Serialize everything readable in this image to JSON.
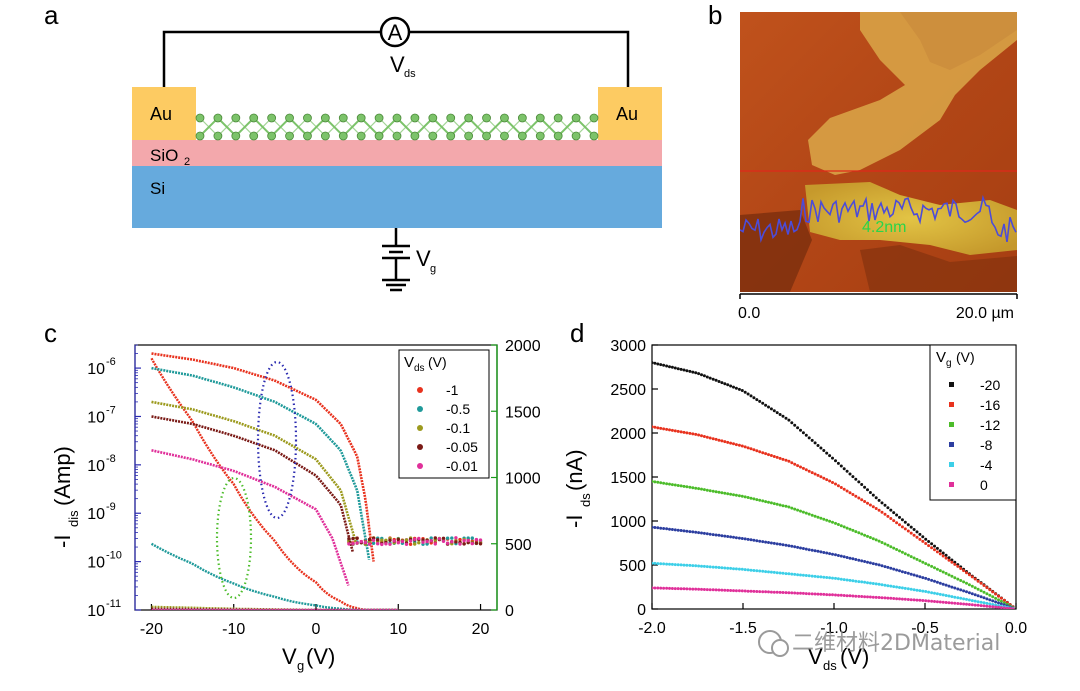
{
  "panels": {
    "a": {
      "letter": "a",
      "electrode_left": "Au",
      "electrode_right": "Au",
      "oxide": "SiO",
      "oxide_sub": "2",
      "substrate": "Si",
      "ammeter": "A",
      "vds_main": "V",
      "vds_sub": "ds",
      "vg_main": "V",
      "vg_sub": "g",
      "colors": {
        "au": "#fdcb62",
        "sio2": "#f3a8ac",
        "si": "#66aadd",
        "atoms": "#7cc36a"
      }
    },
    "b": {
      "letter": "b",
      "height_label": "4.2nm",
      "scale_start": "0.0",
      "scale_end": "20.0 µm"
    },
    "c": {
      "letter": "c",
      "ylabel_main": "-I",
      "ylabel_sub": "dis",
      "ylabel_unit": "(Amp)",
      "xlabel_main": "V",
      "xlabel_sub": "g",
      "xlabel_unit": "(V)",
      "left_ticks": [
        {
          "base": "10",
          "exp": "-6"
        },
        {
          "base": "10",
          "exp": "-7"
        },
        {
          "base": "10",
          "exp": "-8"
        },
        {
          "base": "10",
          "exp": "-9"
        },
        {
          "base": "10",
          "exp": "-10"
        },
        {
          "base": "10",
          "exp": "-11"
        }
      ],
      "legend_title_main": "V",
      "legend_title_sub": "ds",
      "legend_title_unit": "(V)"
    },
    "d": {
      "letter": "d",
      "ylabel_main": "-I",
      "ylabel_sub": "ds",
      "ylabel_unit": "(nA)",
      "xlabel_main": "V",
      "xlabel_sub": "ds",
      "xlabel_unit": "(V)",
      "legend_title_main": "V",
      "legend_title_sub": "g",
      "legend_title_unit": "(V)"
    }
  },
  "watermark": "二维材料2DMaterial",
  "chart_data": [
    {
      "type": "line",
      "title": "",
      "xlabel": "Vg(V)",
      "ylabel": "-Idis(Amp)",
      "yscale": "log",
      "xlim": [
        -22,
        22
      ],
      "ylim": [
        1e-11,
        3e-06
      ],
      "xticks": [
        -20,
        -10,
        0,
        10,
        20
      ],
      "y2label": "",
      "y2lim": [
        0,
        2000
      ],
      "y2ticks": [
        0,
        500,
        1000,
        1500,
        2000
      ],
      "legend_title": "Vds (V)",
      "series": [
        {
          "name": "-1",
          "color": "#e8321e",
          "x": [
            -20,
            -15,
            -10,
            -5,
            0,
            3,
            5,
            6,
            7
          ],
          "y": [
            2e-06,
            1.5e-06,
            1e-06,
            5.5e-07,
            2.2e-07,
            7e-08,
            1.5e-08,
            2e-09,
            1e-10
          ]
        },
        {
          "name": "-0.5",
          "color": "#1f9a9a",
          "x": [
            -20,
            -15,
            -10,
            -5,
            0,
            3,
            5,
            6.5
          ],
          "y": [
            1e-06,
            7e-07,
            4e-07,
            2e-07,
            7e-08,
            2e-08,
            3e-09,
            1e-10
          ]
        },
        {
          "name": "-0.1",
          "color": "#9c9a1e",
          "x": [
            -20,
            -15,
            -10,
            -5,
            0,
            3,
            5
          ],
          "y": [
            2e-07,
            1.4e-07,
            8e-08,
            4e-08,
            1.3e-08,
            3e-09,
            2e-10
          ]
        },
        {
          "name": "-0.05",
          "color": "#7a1a16",
          "x": [
            -20,
            -15,
            -10,
            -5,
            0,
            3,
            4.5
          ],
          "y": [
            1e-07,
            7e-08,
            4e-08,
            2e-08,
            6e-09,
            1.5e-09,
            1.5e-10
          ]
        },
        {
          "name": "-0.01",
          "color": "#e0309a",
          "x": [
            -20,
            -15,
            -10,
            -5,
            0,
            2,
            4
          ],
          "y": [
            2e-08,
            1.3e-08,
            7.5e-09,
            3.5e-09,
            1.2e-09,
            3e-10,
            3e-11
          ]
        }
      ]
    },
    {
      "type": "line",
      "title": "",
      "xlabel": "Vds(V)",
      "ylabel": "-Ids(nA)",
      "xlim": [
        -2.0,
        0.0
      ],
      "ylim": [
        0,
        3000
      ],
      "xticks": [
        -2.0,
        -1.5,
        -1.0,
        -0.5,
        0.0
      ],
      "xticklabels": [
        "-2.0",
        "-1.5",
        "-1.0",
        "-0.5",
        "0.0"
      ],
      "yticks": [
        0,
        500,
        1000,
        1500,
        2000,
        2500,
        3000
      ],
      "legend_title": "Vg (V)",
      "series": [
        {
          "name": "-20",
          "color": "#111111",
          "x": [
            -2.0,
            -1.75,
            -1.5,
            -1.25,
            -1.0,
            -0.75,
            -0.5,
            -0.25,
            0.0
          ],
          "y": [
            2800,
            2680,
            2480,
            2150,
            1700,
            1230,
            800,
            390,
            0
          ]
        },
        {
          "name": "-16",
          "color": "#e8321e",
          "x": [
            -2.0,
            -1.75,
            -1.5,
            -1.25,
            -1.0,
            -0.75,
            -0.5,
            -0.25,
            0.0
          ],
          "y": [
            2070,
            1980,
            1850,
            1680,
            1430,
            1120,
            750,
            380,
            0
          ]
        },
        {
          "name": "-12",
          "color": "#4cbc2a",
          "x": [
            -2.0,
            -1.75,
            -1.5,
            -1.25,
            -1.0,
            -0.75,
            -0.5,
            -0.25,
            0.0
          ],
          "y": [
            1450,
            1370,
            1280,
            1160,
            980,
            770,
            520,
            270,
            0
          ]
        },
        {
          "name": "-8",
          "color": "#2c3ea0",
          "x": [
            -2.0,
            -1.75,
            -1.5,
            -1.25,
            -1.0,
            -0.75,
            -0.5,
            -0.25,
            0.0
          ],
          "y": [
            930,
            870,
            800,
            720,
            620,
            500,
            350,
            180,
            0
          ]
        },
        {
          "name": "-4",
          "color": "#3ccfe8",
          "x": [
            -2.0,
            -1.75,
            -1.5,
            -1.25,
            -1.0,
            -0.75,
            -0.5,
            -0.25,
            0.0
          ],
          "y": [
            520,
            490,
            450,
            400,
            350,
            280,
            200,
            100,
            0
          ]
        },
        {
          "name": "0",
          "color": "#e0309a",
          "x": [
            -2.0,
            -1.75,
            -1.5,
            -1.25,
            -1.0,
            -0.75,
            -0.5,
            -0.25,
            0.0
          ],
          "y": [
            240,
            225,
            205,
            185,
            160,
            130,
            95,
            50,
            0
          ]
        }
      ]
    }
  ]
}
